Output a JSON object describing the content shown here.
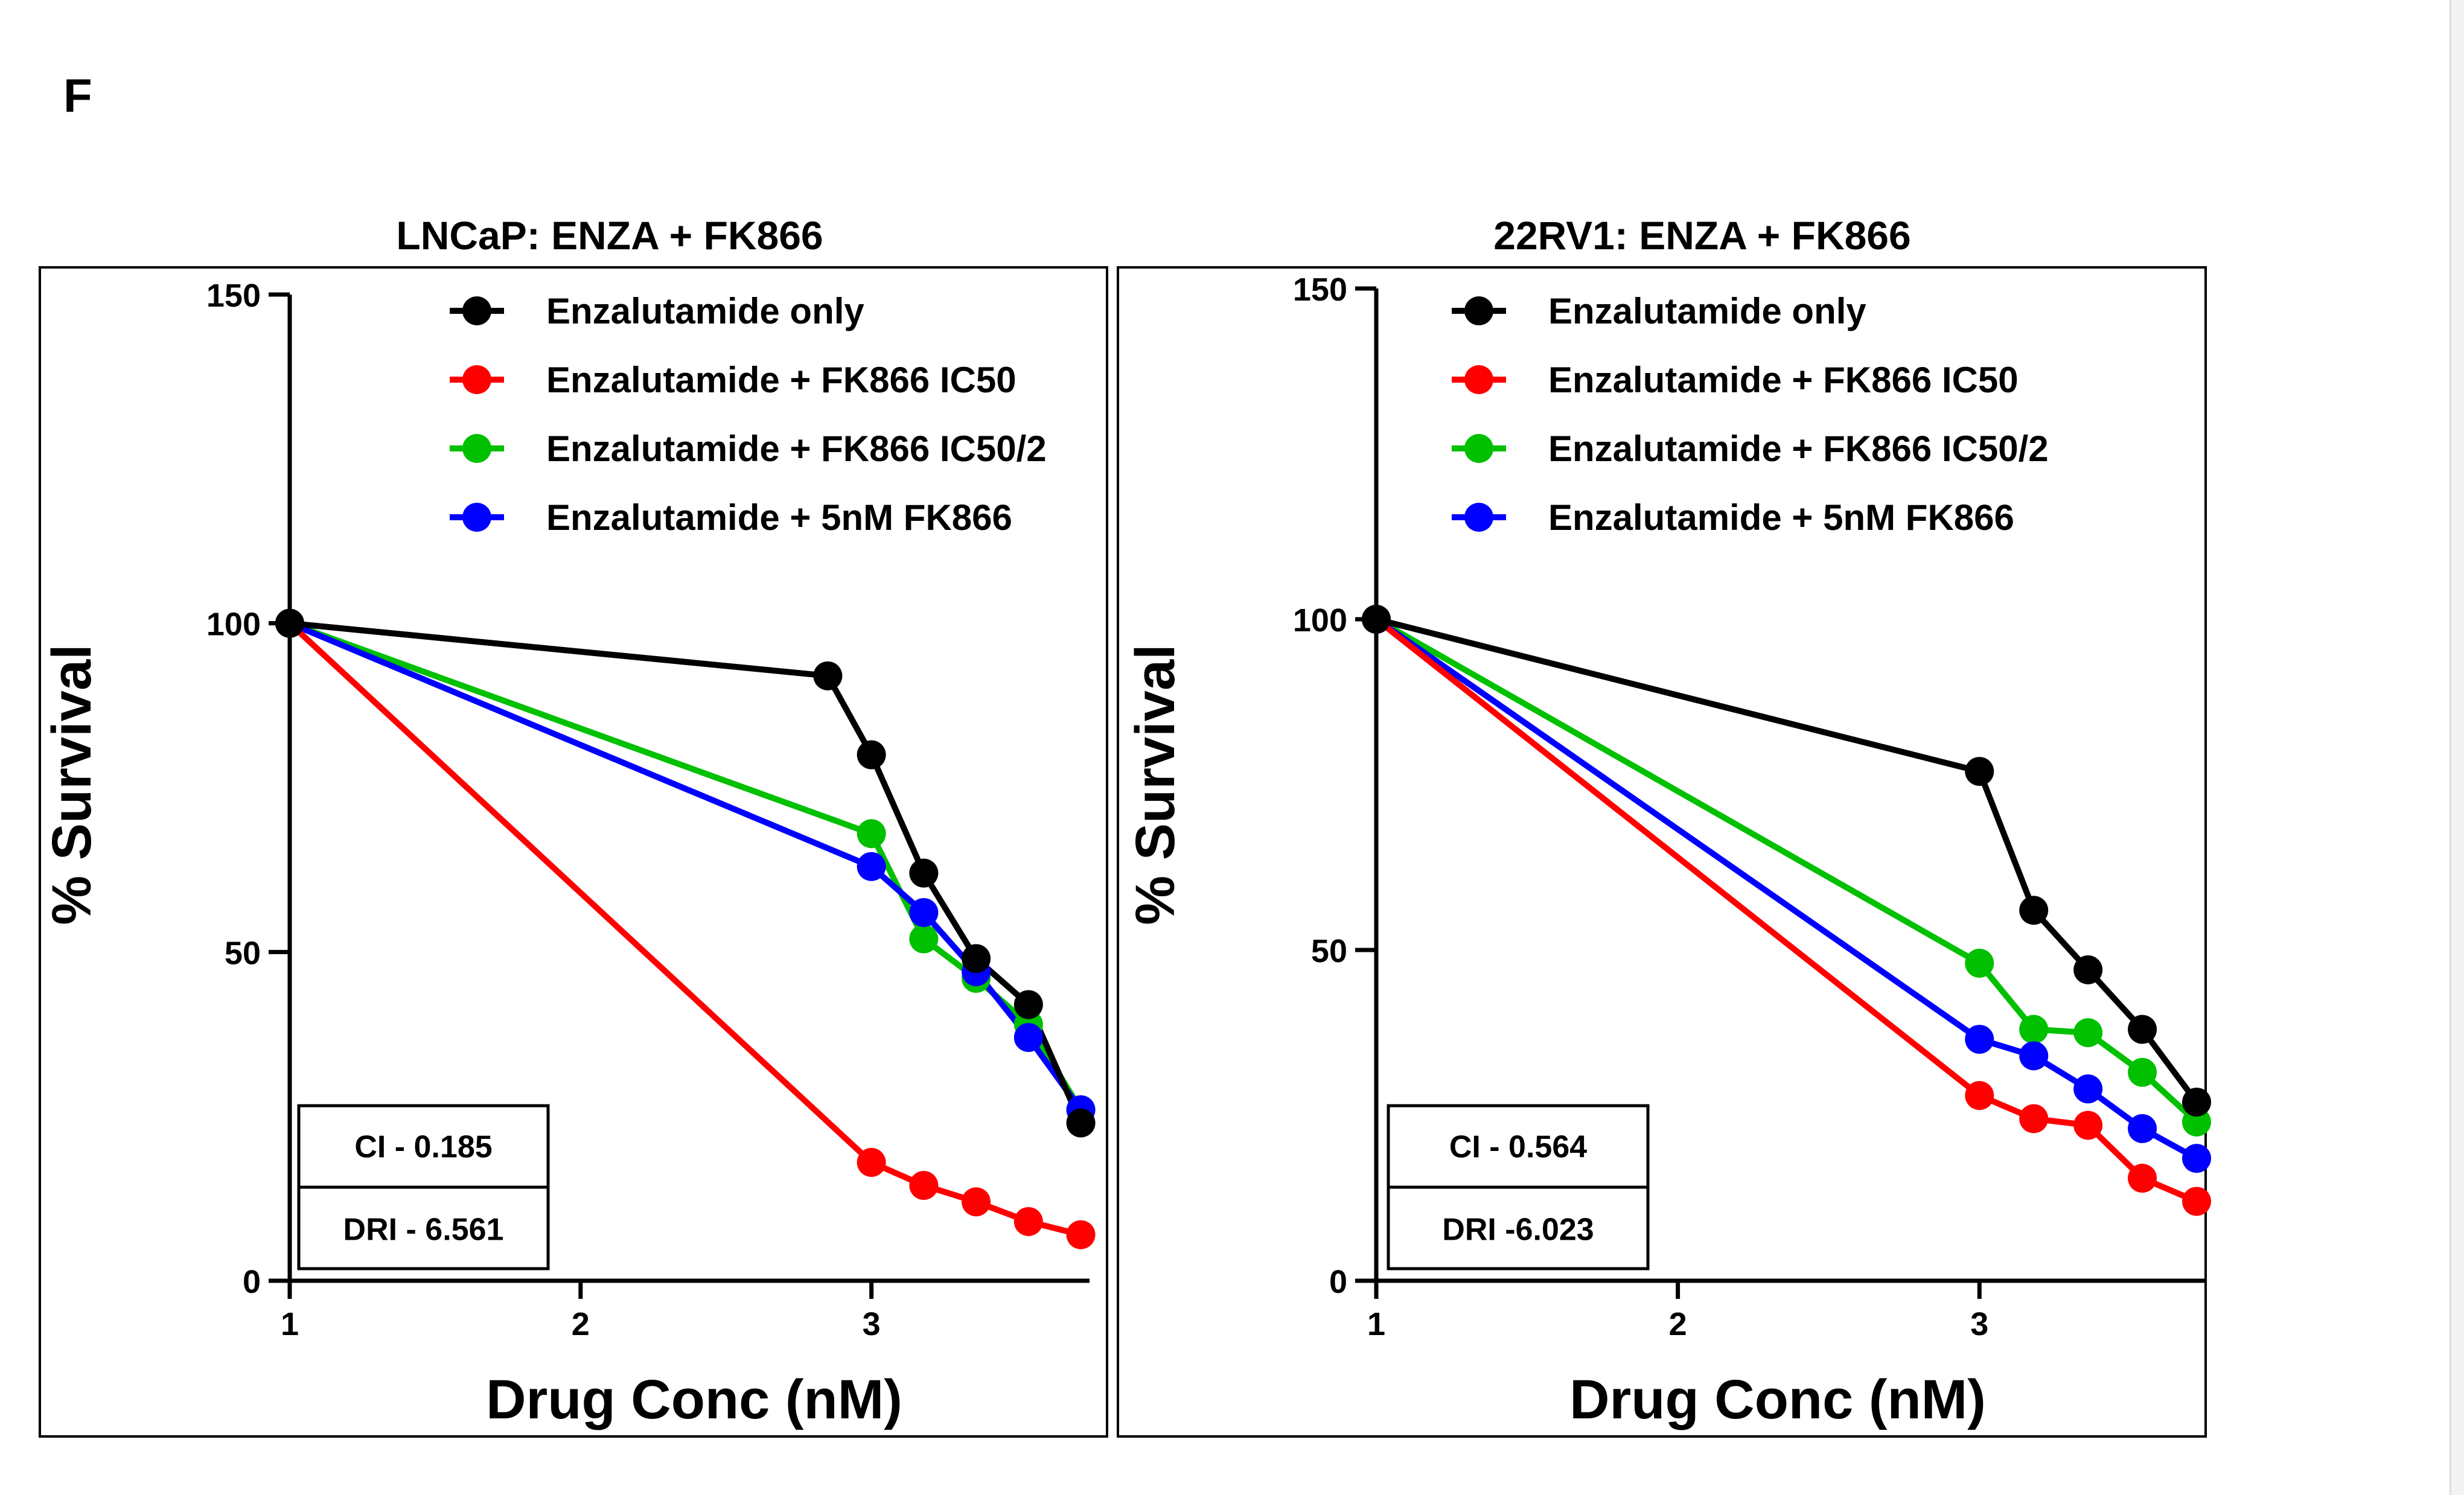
{
  "figure": {
    "panel_letter": "F"
  },
  "chart_data": [
    {
      "type": "line",
      "title": "LNCaP: ENZA + FK866",
      "xlabel": "Drug Conc (nM)",
      "ylabel": "% Survival",
      "xlim": [
        1,
        3.75
      ],
      "ylim": [
        0,
        150
      ],
      "xticks": [
        1,
        2,
        3
      ],
      "yticks": [
        0,
        50,
        100,
        150
      ],
      "legend_position": "top",
      "series": [
        {
          "name": "Enzalutamide only",
          "color": "#000000",
          "points": [
            [
              1,
              100
            ],
            [
              2.85,
              92
            ],
            [
              3,
              80
            ],
            [
              3.18,
              62
            ],
            [
              3.36,
              49
            ],
            [
              3.54,
              42
            ],
            [
              3.72,
              24
            ]
          ]
        },
        {
          "name": "Enzalutamide + FK866 IC50",
          "color": "#ff0000",
          "points": [
            [
              1,
              100
            ],
            [
              3,
              18
            ],
            [
              3.18,
              14.5
            ],
            [
              3.36,
              12
            ],
            [
              3.54,
              9
            ],
            [
              3.72,
              7
            ]
          ]
        },
        {
          "name": "Enzalutamide + FK866 IC50/2",
          "color": "#00c000",
          "points": [
            [
              1,
              100
            ],
            [
              3,
              68
            ],
            [
              3.18,
              52
            ],
            [
              3.36,
              46
            ],
            [
              3.54,
              39
            ],
            [
              3.72,
              26
            ]
          ]
        },
        {
          "name": "Enzalutamide + 5nM FK866",
          "color": "#0000ff",
          "points": [
            [
              1,
              100
            ],
            [
              3,
              63
            ],
            [
              3.18,
              56
            ],
            [
              3.36,
              47
            ],
            [
              3.54,
              37
            ],
            [
              3.72,
              26
            ]
          ]
        }
      ],
      "annotation": {
        "ci": "CI - 0.185",
        "dri": "DRI - 6.561"
      }
    },
    {
      "type": "line",
      "title": "22RV1: ENZA + FK866",
      "xlabel": "Drug Conc (nM)",
      "ylabel": "% Survival",
      "xlim": [
        1,
        3.75
      ],
      "ylim": [
        0,
        150
      ],
      "xticks": [
        1,
        2,
        3
      ],
      "yticks": [
        0,
        50,
        100,
        150
      ],
      "legend_position": "top",
      "series": [
        {
          "name": "Enzalutamide only",
          "color": "#000000",
          "points": [
            [
              1,
              100
            ],
            [
              3,
              77
            ],
            [
              3.18,
              56
            ],
            [
              3.36,
              47
            ],
            [
              3.54,
              38
            ],
            [
              3.72,
              27
            ]
          ]
        },
        {
          "name": "Enzalutamide + FK866 IC50",
          "color": "#ff0000",
          "points": [
            [
              1,
              100
            ],
            [
              3,
              28
            ],
            [
              3.18,
              24.5
            ],
            [
              3.36,
              23.5
            ],
            [
              3.54,
              15.5
            ],
            [
              3.72,
              12
            ]
          ]
        },
        {
          "name": "Enzalutamide + FK866 IC50/2",
          "color": "#00c000",
          "points": [
            [
              1,
              100
            ],
            [
              3,
              48
            ],
            [
              3.18,
              38
            ],
            [
              3.36,
              37.5
            ],
            [
              3.54,
              31.5
            ],
            [
              3.72,
              24
            ]
          ]
        },
        {
          "name": "Enzalutamide + 5nM FK866",
          "color": "#0000ff",
          "points": [
            [
              1,
              100
            ],
            [
              3,
              36.5
            ],
            [
              3.18,
              34
            ],
            [
              3.36,
              29
            ],
            [
              3.54,
              23
            ],
            [
              3.72,
              18.5
            ]
          ]
        }
      ],
      "annotation": {
        "ci": "CI - 0.564",
        "dri": "DRI -6.023"
      }
    }
  ]
}
